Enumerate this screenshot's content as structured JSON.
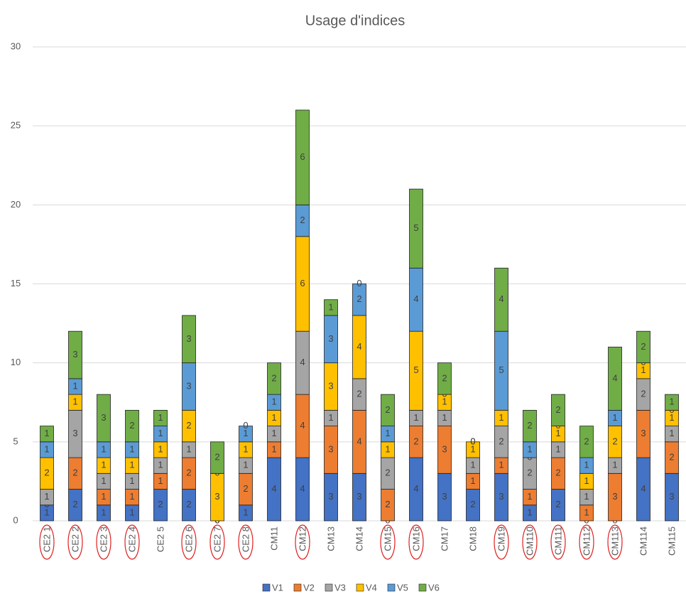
{
  "chart_data": {
    "type": "stacked_bar",
    "title": "Usage d'indices",
    "categories": [
      "CE2 1",
      "CE2 2",
      "CE2 3",
      "CE2 4",
      "CE2 5",
      "CE2 6",
      "CE2 7",
      "CE2 8",
      "CM11",
      "CM12",
      "CM13",
      "CM14",
      "CM15",
      "CM16",
      "CM17",
      "CM18",
      "CM19",
      "CM110",
      "CM111",
      "CM112",
      "CM113",
      "CM114",
      "CM115"
    ],
    "circled": [
      true,
      true,
      true,
      true,
      false,
      true,
      true,
      true,
      false,
      true,
      false,
      false,
      true,
      true,
      false,
      false,
      true,
      true,
      true,
      true,
      true,
      false,
      false
    ],
    "series": [
      {
        "name": "V1",
        "color": "#4472c4",
        "values": [
          1,
          2,
          1,
          1,
          2,
          2,
          0,
          1,
          4,
          4,
          3,
          3,
          0,
          4,
          3,
          2,
          3,
          1,
          2,
          0,
          0,
          4,
          3
        ]
      },
      {
        "name": "V2",
        "color": "#ed7d31",
        "values": [
          0,
          2,
          1,
          1,
          1,
          2,
          0,
          2,
          1,
          4,
          3,
          4,
          2,
          2,
          3,
          1,
          1,
          1,
          2,
          1,
          3,
          3,
          2
        ]
      },
      {
        "name": "V3",
        "color": "#a5a5a5",
        "values": [
          1,
          3,
          1,
          1,
          1,
          1,
          0,
          1,
          1,
          4,
          1,
          2,
          2,
          1,
          1,
          1,
          2,
          2,
          1,
          1,
          1,
          2,
          1
        ]
      },
      {
        "name": "V4",
        "color": "#ffc000",
        "values": [
          2,
          1,
          1,
          1,
          1,
          2,
          3,
          1,
          1,
          6,
          3,
          4,
          1,
          5,
          1,
          1,
          1,
          0,
          1,
          1,
          2,
          1,
          1
        ]
      },
      {
        "name": "V5",
        "color": "#5b9bd5",
        "values": [
          1,
          1,
          1,
          1,
          1,
          3,
          0,
          1,
          1,
          2,
          3,
          2,
          1,
          4,
          0,
          0,
          5,
          1,
          0,
          1,
          1,
          0,
          0
        ]
      },
      {
        "name": "V6",
        "color": "#70ad47",
        "values": [
          1,
          3,
          3,
          2,
          1,
          3,
          2,
          0,
          2,
          6,
          1,
          0,
          2,
          5,
          2,
          0,
          4,
          2,
          2,
          2,
          4,
          2,
          1
        ]
      }
    ],
    "ylim": [
      0,
      30
    ],
    "yticks": [
      0,
      5,
      10,
      15,
      20,
      25,
      30
    ],
    "grid": true,
    "legend": "bottom"
  }
}
